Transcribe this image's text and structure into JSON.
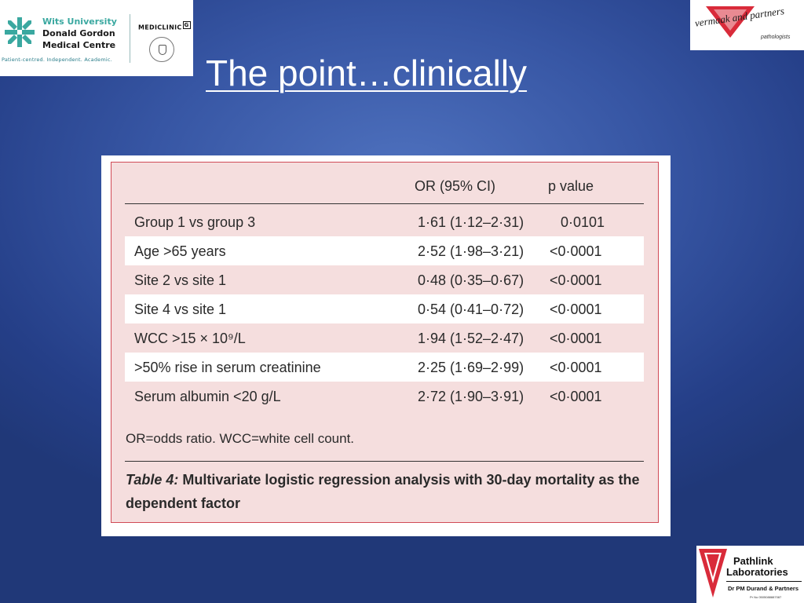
{
  "slide": {
    "title": "The point…clinically"
  },
  "logos": {
    "wits": {
      "line1": "Wits University",
      "line2": "Donald Gordon",
      "line3": "Medical Centre",
      "tagline": "Patient-centred. Independent. Academic.",
      "color": "#3aa8a0"
    },
    "mediclinic": {
      "name": "MEDICLINIC",
      "mark": "G"
    },
    "vermaak": {
      "name": "vermaak and partners",
      "sub": "pathologists",
      "color": "#d92b3a"
    },
    "pathlink": {
      "line1": "Pathlink",
      "line2": "Laboratories",
      "sub": "Dr PM Durand & Partners",
      "tiny": "Pr No 0505088887087",
      "color": "#d92b3a"
    }
  },
  "table": {
    "headers": {
      "or": "OR (95% CI)",
      "p": "p value"
    },
    "rows": [
      {
        "label": "Group 1 vs group 3",
        "or": "1·61 (1·12–2·31)",
        "p": "0·0101"
      },
      {
        "label": "Age >65 years",
        "or": "2·52 (1·98–3·21)",
        "p": "<0·0001"
      },
      {
        "label": "Site 2 vs site 1",
        "or": "0·48 (0·35–0·67)",
        "p": "<0·0001"
      },
      {
        "label": "Site 4 vs site 1",
        "or": "0·54 (0·41–0·72)",
        "p": "<0·0001"
      },
      {
        "label": "WCC >15 × 10⁹/L",
        "or": "1·94 (1·52–2·47)",
        "p": "<0·0001"
      },
      {
        "label": ">50% rise in serum creatinine",
        "or": "2·25 (1·69–2·99)",
        "p": "<0·0001"
      },
      {
        "label": "Serum albumin <20 g/L",
        "or": "2·72 (1·90–3·91)",
        "p": "<0·0001"
      }
    ],
    "footnote": "OR=odds ratio. WCC=white cell count.",
    "caption": {
      "label": "Table 4:",
      "text": " Multivariate logistic regression analysis with 30-day mortality as the dependent factor"
    },
    "colors": {
      "background": "#f5dede",
      "border": "#d04a56"
    }
  }
}
